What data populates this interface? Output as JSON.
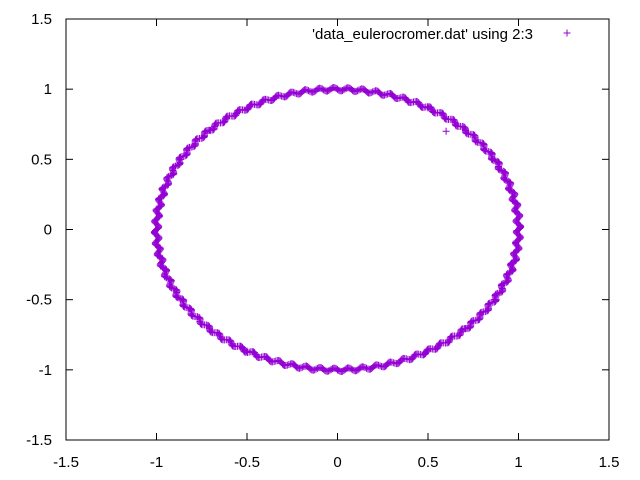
{
  "chart_data": {
    "type": "scatter",
    "title": "",
    "xlabel": "",
    "ylabel": "",
    "xlim": [
      -1.5,
      1.5
    ],
    "ylim": [
      -1.5,
      1.5
    ],
    "xticks": [
      -1.5,
      -1,
      -0.5,
      0,
      0.5,
      1,
      1.5
    ],
    "yticks": [
      -1.5,
      -1,
      -0.5,
      0,
      0.5,
      1,
      1.5
    ],
    "xtick_labels": [
      "-1.5",
      "-1",
      "-0.5",
      "0",
      "0.5",
      "1",
      "1.5"
    ],
    "ytick_labels": [
      "-1.5",
      "-1",
      "-0.5",
      "0",
      "0.5",
      "1",
      "1.5"
    ],
    "grid": false,
    "legend_position": "top-right",
    "marker": "+",
    "series": [
      {
        "name": "'data_eulerocromer.dat' using 2:3",
        "color": "#9400d3",
        "marker": "+",
        "shape": "closed orbit, approximately x = cos(t), y = sin(t), radius 1.0 ± 0.015",
        "points": [
          [
            1.0,
            0.0
          ],
          [
            0.866,
            0.5
          ],
          [
            0.707,
            0.707
          ],
          [
            0.5,
            0.866
          ],
          [
            0.0,
            1.0
          ],
          [
            -0.5,
            0.866
          ],
          [
            -0.707,
            0.707
          ],
          [
            -0.866,
            0.5
          ],
          [
            -1.0,
            0.0
          ],
          [
            -0.866,
            -0.5
          ],
          [
            -0.707,
            -0.707
          ],
          [
            -0.5,
            -0.866
          ],
          [
            0.0,
            -1.0
          ],
          [
            0.5,
            -0.866
          ],
          [
            0.707,
            -0.707
          ],
          [
            0.866,
            -0.5
          ]
        ]
      }
    ]
  }
}
